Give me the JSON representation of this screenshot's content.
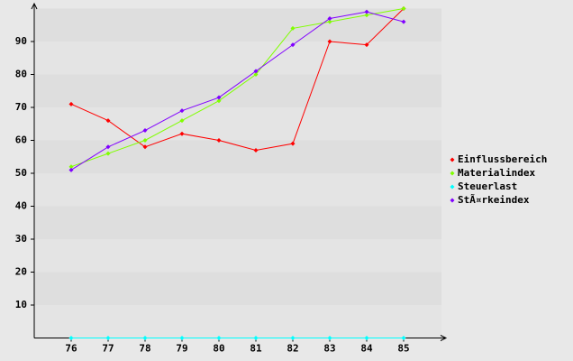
{
  "chart_data": {
    "type": "line",
    "categories": [
      "76",
      "77",
      "78",
      "79",
      "80",
      "81",
      "82",
      "83",
      "84",
      "85"
    ],
    "series": [
      {
        "name": "Einflussbereich",
        "color": "#ff0000",
        "values": [
          71,
          66,
          58,
          62,
          60,
          57,
          59,
          90,
          89,
          100
        ]
      },
      {
        "name": "Materialindex",
        "color": "#80ff00",
        "values": [
          52,
          56,
          60,
          66,
          72,
          80,
          94,
          96,
          98,
          100
        ]
      },
      {
        "name": "Steuerlast",
        "color": "#00ffff",
        "values": [
          0,
          0,
          0,
          0,
          0,
          0,
          0,
          0,
          0,
          0
        ]
      },
      {
        "name": "StÃ¤rkeindex",
        "color": "#8000ff",
        "values": [
          51,
          58,
          63,
          69,
          73,
          81,
          89,
          97,
          99,
          96
        ]
      }
    ],
    "ylim": [
      0,
      100
    ],
    "yticks": [
      10,
      20,
      30,
      40,
      50,
      60,
      70,
      80,
      90
    ],
    "grid": true,
    "legend": "right"
  }
}
